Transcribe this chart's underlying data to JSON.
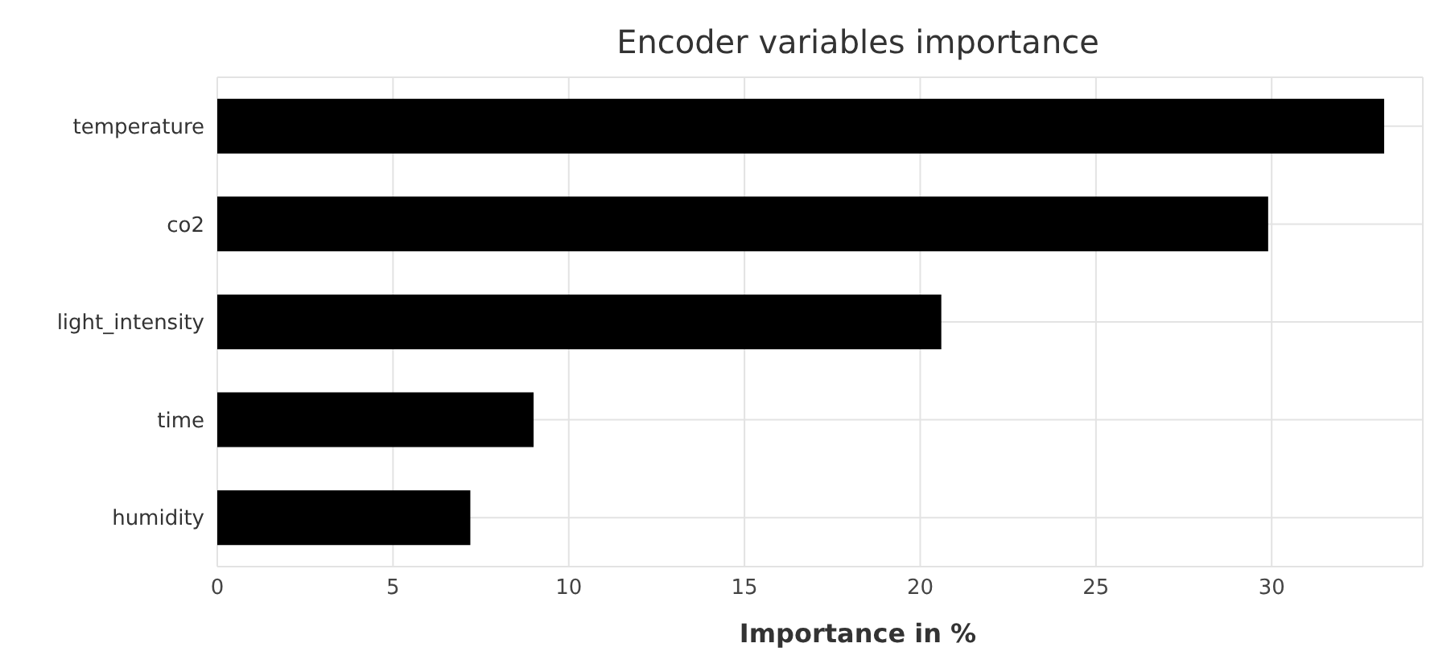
{
  "chart_data": {
    "type": "bar",
    "orientation": "horizontal",
    "title": "Encoder variables importance",
    "xlabel": "Importance in %",
    "categories": [
      "temperature",
      "co2",
      "light_intensity",
      "time",
      "humidity"
    ],
    "values": [
      33.2,
      29.9,
      20.6,
      9.0,
      7.2
    ],
    "color": "#000000",
    "xlim": [
      0,
      34.3
    ],
    "xticks": [
      0,
      5,
      10,
      15,
      20,
      25,
      30
    ],
    "grid": true
  }
}
